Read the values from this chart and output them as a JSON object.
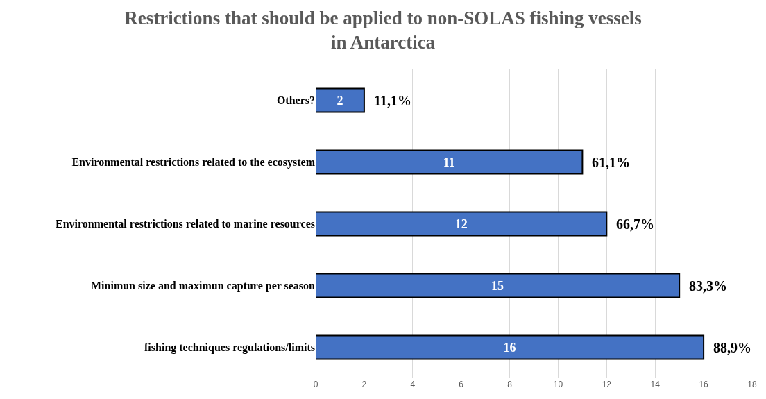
{
  "chart_data": {
    "type": "bar",
    "orientation": "horizontal",
    "title": "Restrictions that should be applied to non-SOLAS fishing vessels\nin Antarctica",
    "categories": [
      "Others?",
      "Environmental restrictions related to the ecosystem",
      "Environmental restrictions related to marine resources",
      "Minimun size and maximun capture per season",
      "fishing techniques regulations/limits"
    ],
    "values": [
      2,
      11,
      12,
      15,
      16
    ],
    "color": "#4472c4",
    "data_labels": true,
    "xlim": [
      0,
      18
    ],
    "xticks": [
      0,
      2,
      4,
      6,
      8,
      10,
      12,
      14,
      16,
      18
    ],
    "grid": "x",
    "annotations": [
      {
        "text": "11,1%",
        "x": 2,
        "y": "Others?"
      },
      {
        "text": "61,1%",
        "x": 11,
        "y": "Environmental restrictions related to the ecosystem"
      },
      {
        "text": "66,7%",
        "x": 12,
        "y": "Environmental restrictions related to marine resources"
      },
      {
        "text": "83,3%",
        "x": 15,
        "y": "Minimun size and maximun capture per season"
      },
      {
        "text": "88,9%",
        "x": 16,
        "y": "fishing techniques regulations/limits"
      }
    ]
  }
}
